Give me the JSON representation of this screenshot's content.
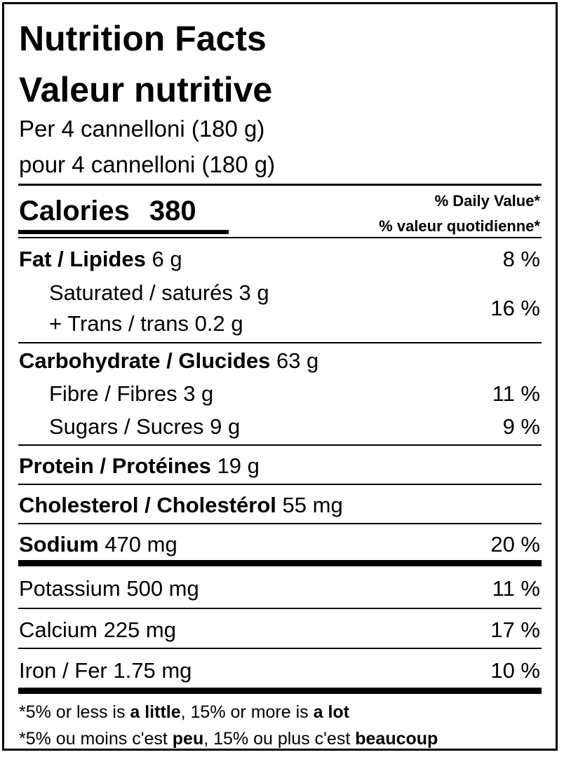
{
  "header": {
    "title_en": "Nutrition Facts",
    "title_fr": "Valeur nutritive",
    "serving_en": "Per 4 cannelloni (180 g)",
    "serving_fr": "pour 4 cannelloni (180 g)"
  },
  "calories": {
    "label": "Calories",
    "value": "380",
    "dv_header_en": "% Daily Value*",
    "dv_header_fr": "% valeur quotidienne*"
  },
  "nutrients": {
    "fat": {
      "label": "Fat / Lipides",
      "amount": "6 g",
      "dv": "8 %"
    },
    "saturated": {
      "label": "Saturated / saturés 3 g"
    },
    "trans": {
      "label": "+ Trans / trans 0.2 g"
    },
    "sat_trans_dv": "16 %",
    "carb": {
      "label": "Carbohydrate / Glucides",
      "amount": "63 g"
    },
    "fibre": {
      "label": "Fibre / Fibres 3 g",
      "dv": "11 %"
    },
    "sugars": {
      "label": "Sugars / Sucres 9 g",
      "dv": "9 %"
    },
    "protein": {
      "label": "Protein / Protéines",
      "amount": "19 g"
    },
    "cholesterol": {
      "label": "Cholesterol / Cholestérol",
      "amount": "55 mg"
    },
    "sodium": {
      "label": "Sodium",
      "amount": "470 mg",
      "dv": "20 %"
    }
  },
  "minerals": {
    "potassium": {
      "label": "Potassium 500 mg",
      "dv": "11 %"
    },
    "calcium": {
      "label": "Calcium 225 mg",
      "dv": "17 %"
    },
    "iron": {
      "label": "Iron / Fer 1.75 mg",
      "dv": "10 %"
    }
  },
  "footnote": {
    "en_prefix": "*5% or less is ",
    "en_little": "a little",
    "en_mid": ", 15% or more is ",
    "en_lot": "a lot",
    "fr_prefix": "*5% ou moins c'est ",
    "fr_peu": "peu",
    "fr_mid": ", 15% ou plus c'est ",
    "fr_beaucoup": "beaucoup"
  }
}
